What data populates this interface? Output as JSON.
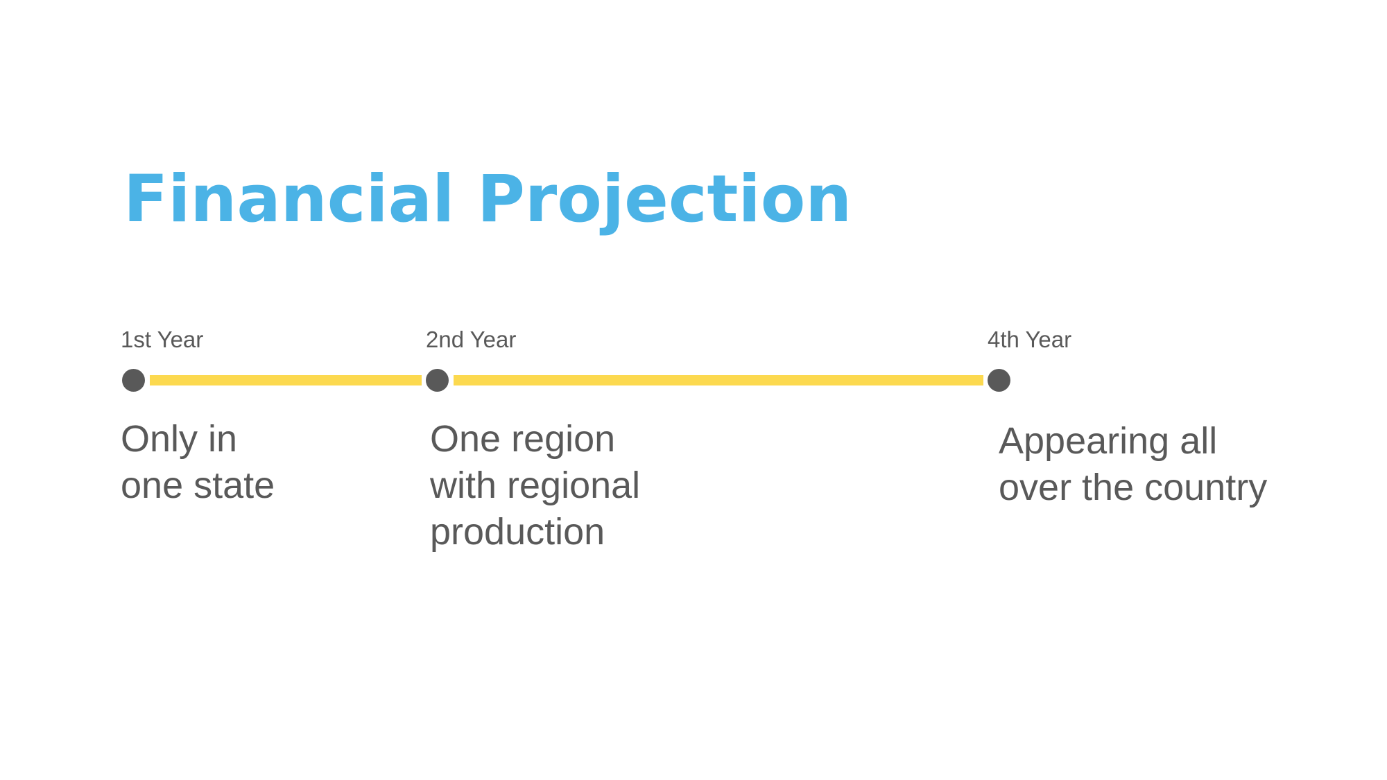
{
  "slide": {
    "title": "Financial Projection",
    "colors": {
      "title": "#4bb3e6",
      "line": "#fcd94f",
      "dot": "#595959",
      "text": "#595959"
    },
    "milestones": [
      {
        "year_label": "1st Year",
        "description": "Only in\none state"
      },
      {
        "year_label": "2nd Year",
        "description": "One region\nwith regional\nproduction"
      },
      {
        "year_label": "4th Year",
        "description": "Appearing all\nover the country"
      }
    ]
  }
}
